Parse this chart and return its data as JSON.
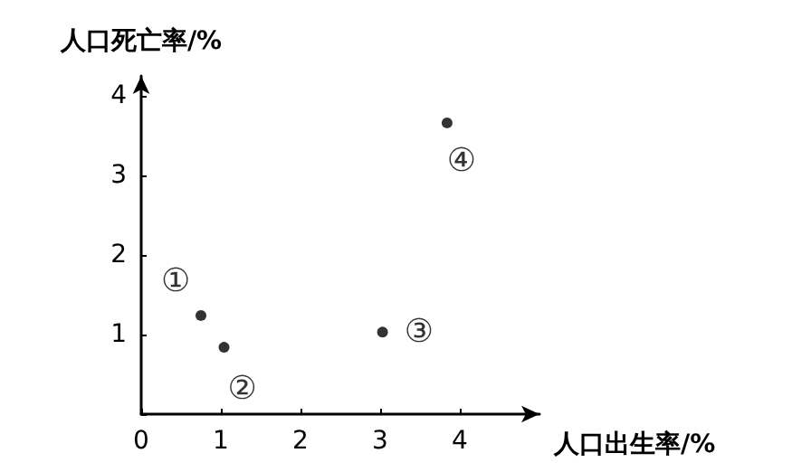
{
  "chart_data": {
    "type": "scatter",
    "xlabel": "人口出生率/%",
    "ylabel": "人口死亡率/%",
    "x": [
      0.75,
      1.04,
      3.03,
      3.84
    ],
    "values": [
      1.24,
      0.84,
      1.03,
      3.66
    ],
    "value_labels": [
      "①",
      "②",
      "③",
      "④"
    ],
    "color": "#000000",
    "marker": "circle",
    "xlim": [
      0,
      5
    ],
    "ylim": [
      0,
      4.25
    ],
    "xticks": [
      0,
      1,
      2,
      3,
      4
    ],
    "yticks": [
      {
        "value": 0,
        "label": null
      },
      1,
      2,
      3,
      4
    ],
    "grid": false
  }
}
